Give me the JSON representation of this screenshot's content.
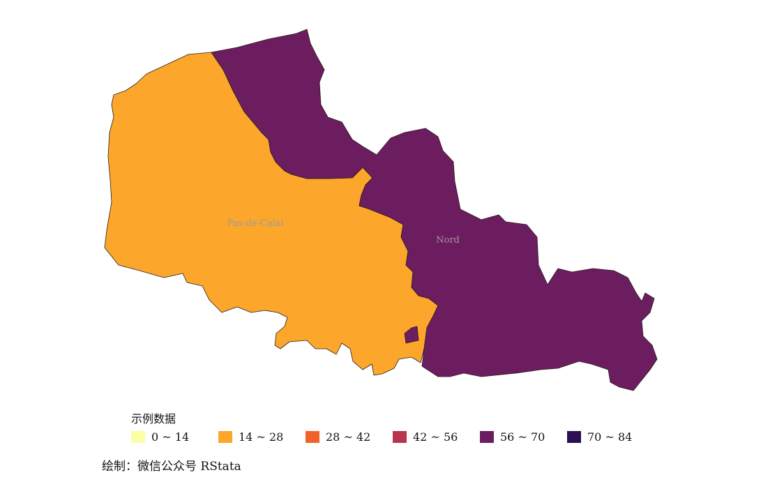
{
  "map": {
    "regions": [
      {
        "id": "pas-de-calais",
        "label": "Pas-de-Calai",
        "color": "#fca72c",
        "bin": "14 ~ 28"
      },
      {
        "id": "nord",
        "label": "Nord",
        "color": "#6c1d5f",
        "bin": "56 ~ 70"
      }
    ]
  },
  "legend": {
    "title": "示例数据",
    "items": [
      {
        "label": "0 ~ 14",
        "color": "#fcffa4"
      },
      {
        "label": "14 ~ 28",
        "color": "#fca72c"
      },
      {
        "label": "28 ~ 42",
        "color": "#f1622b"
      },
      {
        "label": "42 ~ 56",
        "color": "#b8344f"
      },
      {
        "label": "56 ~ 70",
        "color": "#6c1d5f"
      },
      {
        "label": "70 ~ 84",
        "color": "#2b0f52"
      }
    ]
  },
  "caption": "绘制：微信公众号 RStata"
}
